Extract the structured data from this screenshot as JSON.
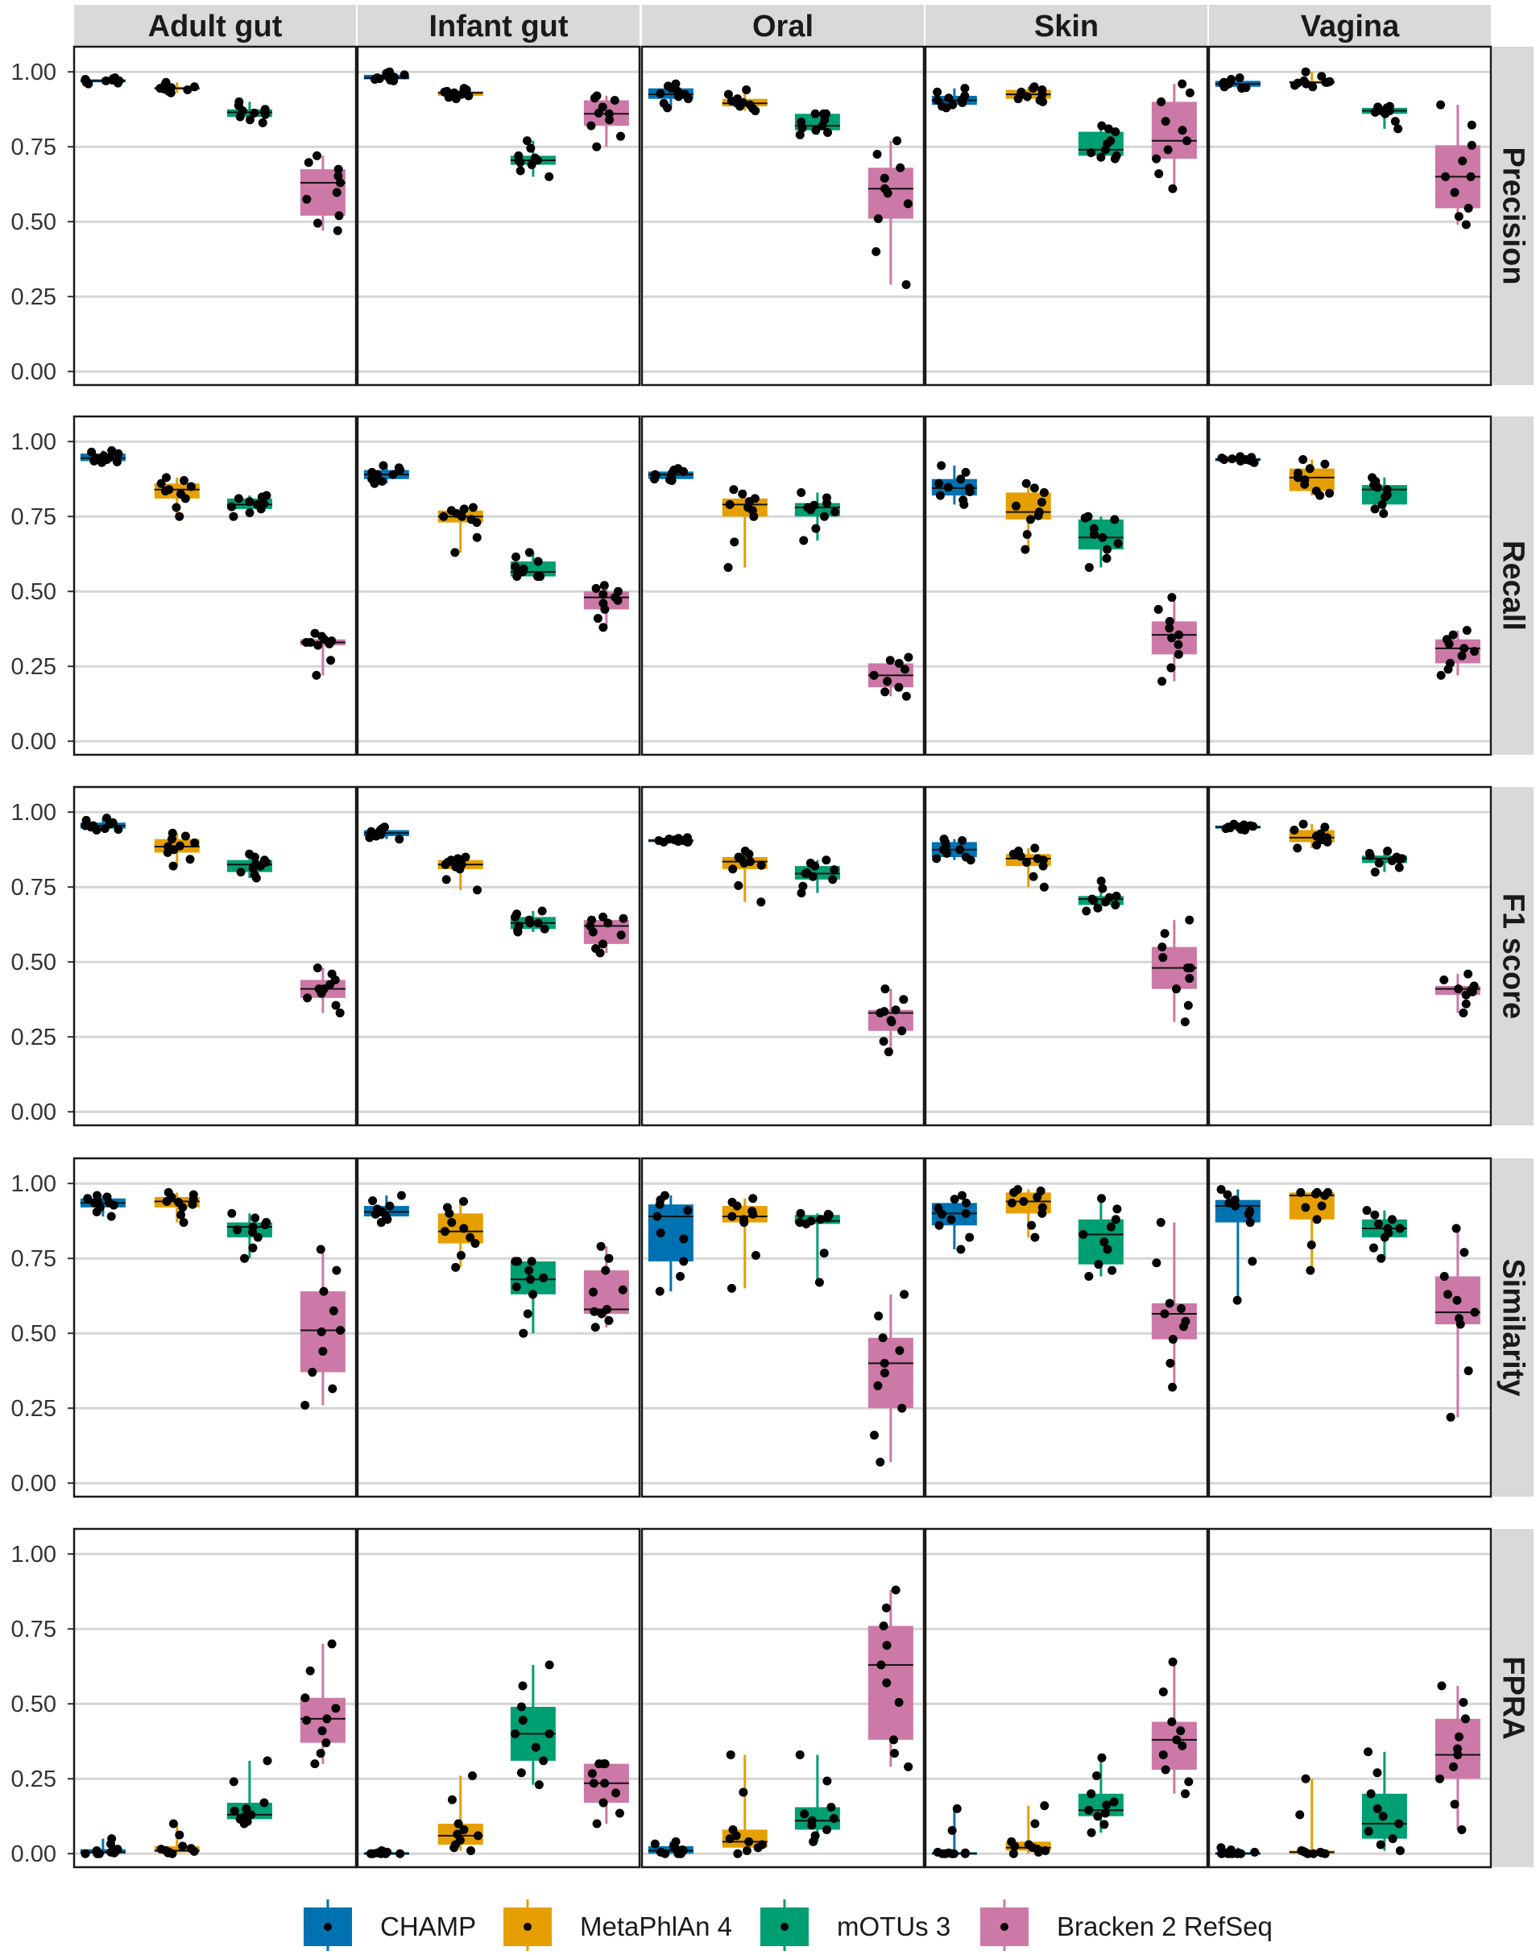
{
  "chart_data": {
    "type": "boxplot",
    "facets": {
      "columns": [
        "Adult gut",
        "Infant gut",
        "Oral",
        "Skin",
        "Vagina"
      ],
      "rows": [
        "Precision",
        "Recall",
        "F1 score",
        "Similarity",
        "FPRA"
      ]
    },
    "y_ticks": [
      "0.00",
      "0.25",
      "0.50",
      "0.75",
      "1.00"
    ],
    "ylim": [
      0,
      1.05
    ],
    "grid": true,
    "legend": {
      "position": "bottom",
      "items": [
        {
          "name": "CHAMP",
          "color": "#0072B2"
        },
        {
          "name": "MetaPhlAn 4",
          "color": "#E69F00"
        },
        {
          "name": "mOTUs 3",
          "color": "#009E73"
        },
        {
          "name": "Bracken 2 RefSeq",
          "color": "#CC79A7"
        }
      ]
    },
    "panels": [
      [
        [
          [
            0.96,
            0.965,
            0.97,
            0.975,
            0.98
          ],
          [
            0.93,
            0.94,
            0.945,
            0.95,
            0.965
          ],
          [
            0.83,
            0.85,
            0.865,
            0.875,
            0.9
          ],
          [
            0.47,
            0.52,
            0.63,
            0.675,
            0.72
          ]
        ],
        [
          [
            0.97,
            0.975,
            0.98,
            0.99,
            1.0
          ],
          [
            0.91,
            0.92,
            0.93,
            0.935,
            0.945
          ],
          [
            0.65,
            0.69,
            0.705,
            0.72,
            0.77
          ],
          [
            0.75,
            0.82,
            0.86,
            0.905,
            0.92
          ]
        ],
        [
          [
            0.88,
            0.91,
            0.925,
            0.945,
            0.96
          ],
          [
            0.87,
            0.885,
            0.895,
            0.91,
            0.94
          ],
          [
            0.79,
            0.805,
            0.82,
            0.86,
            0.86
          ],
          [
            0.29,
            0.51,
            0.61,
            0.68,
            0.77
          ]
        ],
        [
          [
            0.88,
            0.89,
            0.905,
            0.92,
            0.945
          ],
          [
            0.9,
            0.91,
            0.925,
            0.94,
            0.95
          ],
          [
            0.71,
            0.72,
            0.74,
            0.8,
            0.82
          ],
          [
            0.61,
            0.71,
            0.77,
            0.9,
            0.96
          ]
        ],
        [
          [
            0.945,
            0.95,
            0.96,
            0.97,
            0.98
          ],
          [
            0.95,
            0.96,
            0.965,
            0.97,
            1.0
          ],
          [
            0.81,
            0.86,
            0.87,
            0.88,
            0.885
          ],
          [
            0.49,
            0.545,
            0.65,
            0.755,
            0.89
          ]
        ]
      ],
      [
        [
          [
            0.93,
            0.935,
            0.945,
            0.96,
            0.97
          ],
          [
            0.75,
            0.81,
            0.84,
            0.86,
            0.88
          ],
          [
            0.75,
            0.775,
            0.79,
            0.81,
            0.82
          ],
          [
            0.22,
            0.32,
            0.33,
            0.34,
            0.36
          ]
        ],
        [
          [
            0.86,
            0.875,
            0.89,
            0.905,
            0.92
          ],
          [
            0.63,
            0.73,
            0.75,
            0.77,
            0.78
          ],
          [
            0.55,
            0.55,
            0.565,
            0.6,
            0.63
          ],
          [
            0.38,
            0.44,
            0.48,
            0.5,
            0.52
          ]
        ],
        [
          [
            0.87,
            0.875,
            0.89,
            0.9,
            0.91
          ],
          [
            0.58,
            0.75,
            0.79,
            0.81,
            0.84
          ],
          [
            0.67,
            0.75,
            0.78,
            0.795,
            0.83
          ],
          [
            0.15,
            0.18,
            0.22,
            0.26,
            0.28
          ]
        ],
        [
          [
            0.79,
            0.82,
            0.845,
            0.875,
            0.92
          ],
          [
            0.64,
            0.74,
            0.765,
            0.83,
            0.86
          ],
          [
            0.58,
            0.64,
            0.68,
            0.74,
            0.75
          ],
          [
            0.2,
            0.29,
            0.355,
            0.4,
            0.48
          ]
        ],
        [
          [
            0.93,
            0.935,
            0.94,
            0.945,
            0.95
          ],
          [
            0.82,
            0.835,
            0.88,
            0.91,
            0.94
          ],
          [
            0.76,
            0.79,
            0.84,
            0.855,
            0.88
          ],
          [
            0.22,
            0.26,
            0.31,
            0.34,
            0.37
          ]
        ]
      ],
      [
        [
          [
            0.94,
            0.945,
            0.955,
            0.965,
            0.98
          ],
          [
            0.82,
            0.865,
            0.885,
            0.91,
            0.93
          ],
          [
            0.78,
            0.8,
            0.825,
            0.84,
            0.86
          ],
          [
            0.33,
            0.38,
            0.41,
            0.44,
            0.48
          ]
        ],
        [
          [
            0.91,
            0.92,
            0.93,
            0.94,
            0.95
          ],
          [
            0.74,
            0.81,
            0.825,
            0.84,
            0.85
          ],
          [
            0.6,
            0.61,
            0.63,
            0.65,
            0.67
          ],
          [
            0.53,
            0.56,
            0.62,
            0.64,
            0.65
          ]
        ],
        [
          [
            0.9,
            0.9,
            0.905,
            0.91,
            0.915
          ],
          [
            0.7,
            0.81,
            0.835,
            0.85,
            0.87
          ],
          [
            0.73,
            0.775,
            0.795,
            0.82,
            0.84
          ],
          [
            0.2,
            0.27,
            0.33,
            0.34,
            0.41
          ]
        ],
        [
          [
            0.84,
            0.85,
            0.875,
            0.9,
            0.91
          ],
          [
            0.75,
            0.82,
            0.845,
            0.86,
            0.88
          ],
          [
            0.67,
            0.69,
            0.71,
            0.72,
            0.77
          ],
          [
            0.3,
            0.41,
            0.48,
            0.55,
            0.64
          ]
        ],
        [
          [
            0.94,
            0.945,
            0.95,
            0.955,
            0.96
          ],
          [
            0.88,
            0.9,
            0.915,
            0.94,
            0.96
          ],
          [
            0.8,
            0.83,
            0.845,
            0.855,
            0.87
          ],
          [
            0.33,
            0.39,
            0.41,
            0.42,
            0.46
          ]
        ]
      ],
      [
        [
          [
            0.89,
            0.92,
            0.935,
            0.95,
            0.96
          ],
          [
            0.87,
            0.92,
            0.94,
            0.955,
            0.97
          ],
          [
            0.75,
            0.82,
            0.855,
            0.87,
            0.9
          ],
          [
            0.26,
            0.37,
            0.51,
            0.64,
            0.78
          ]
        ],
        [
          [
            0.87,
            0.89,
            0.905,
            0.925,
            0.96
          ],
          [
            0.72,
            0.8,
            0.84,
            0.9,
            0.94
          ],
          [
            0.5,
            0.63,
            0.68,
            0.74,
            0.74
          ],
          [
            0.52,
            0.565,
            0.58,
            0.71,
            0.79
          ]
        ],
        [
          [
            0.64,
            0.74,
            0.89,
            0.93,
            0.96
          ],
          [
            0.65,
            0.87,
            0.89,
            0.925,
            0.95
          ],
          [
            0.67,
            0.865,
            0.875,
            0.895,
            0.9
          ],
          [
            0.07,
            0.25,
            0.4,
            0.485,
            0.63
          ]
        ],
        [
          [
            0.78,
            0.86,
            0.9,
            0.935,
            0.96
          ],
          [
            0.82,
            0.9,
            0.94,
            0.97,
            0.98
          ],
          [
            0.69,
            0.73,
            0.83,
            0.88,
            0.95
          ],
          [
            0.32,
            0.48,
            0.565,
            0.6,
            0.87
          ]
        ],
        [
          [
            0.61,
            0.87,
            0.925,
            0.945,
            0.98
          ],
          [
            0.71,
            0.88,
            0.96,
            0.97,
            0.97
          ],
          [
            0.75,
            0.82,
            0.85,
            0.88,
            0.91
          ],
          [
            0.22,
            0.53,
            0.57,
            0.69,
            0.85
          ]
        ]
      ],
      [
        [
          [
            0.0,
            0.0,
            0.005,
            0.015,
            0.05
          ],
          [
            0.0,
            0.005,
            0.01,
            0.025,
            0.1
          ],
          [
            0.1,
            0.115,
            0.13,
            0.17,
            0.31
          ],
          [
            0.3,
            0.37,
            0.45,
            0.52,
            0.7
          ]
        ],
        [
          [
            0.0,
            0.0,
            0.0,
            0.005,
            0.01
          ],
          [
            0.01,
            0.03,
            0.06,
            0.1,
            0.26
          ],
          [
            0.23,
            0.31,
            0.4,
            0.49,
            0.63
          ],
          [
            0.1,
            0.17,
            0.235,
            0.3,
            0.3
          ]
        ],
        [
          [
            0.0,
            0.0,
            0.01,
            0.025,
            0.04
          ],
          [
            0.0,
            0.02,
            0.04,
            0.08,
            0.33
          ],
          [
            0.04,
            0.08,
            0.11,
            0.155,
            0.33
          ],
          [
            0.29,
            0.38,
            0.63,
            0.76,
            0.88
          ]
        ],
        [
          [
            0.0,
            0.0,
            0.0,
            0.005,
            0.15
          ],
          [
            0.0,
            0.01,
            0.02,
            0.04,
            0.16
          ],
          [
            0.07,
            0.125,
            0.145,
            0.2,
            0.32
          ],
          [
            0.2,
            0.28,
            0.38,
            0.44,
            0.64
          ]
        ],
        [
          [
            0.0,
            0.0,
            0.0,
            0.005,
            0.02
          ],
          [
            0.0,
            0.0,
            0.005,
            0.01,
            0.25
          ],
          [
            0.01,
            0.05,
            0.1,
            0.2,
            0.34
          ],
          [
            0.08,
            0.25,
            0.33,
            0.45,
            0.56
          ]
        ]
      ]
    ]
  }
}
